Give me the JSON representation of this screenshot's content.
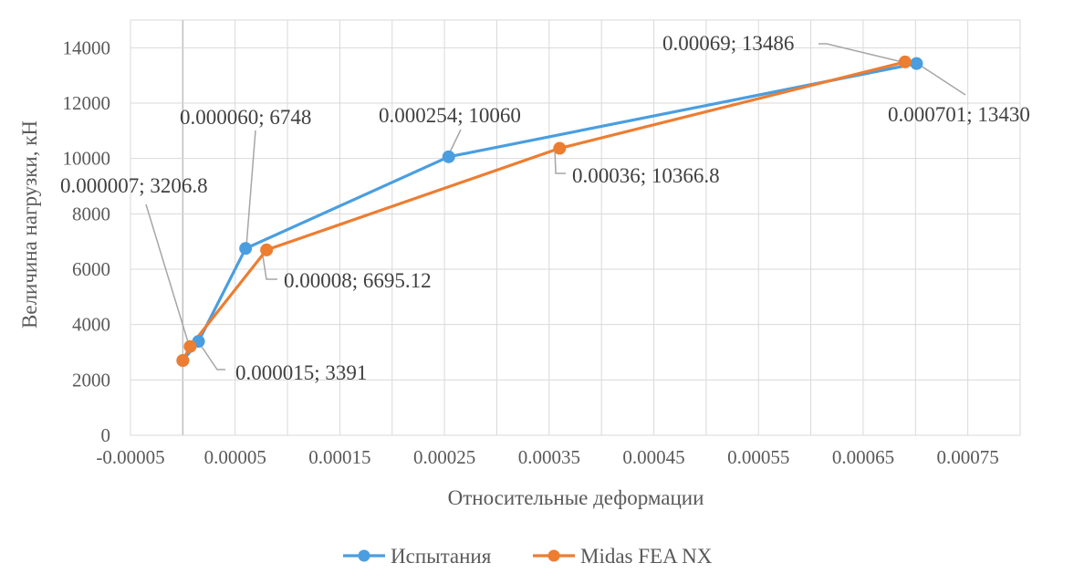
{
  "chart_data": {
    "type": "line",
    "title": "",
    "xlabel": "Относительные деформации",
    "ylabel": "Величина нагрузки, кН",
    "xlim": [
      -5e-05,
      0.0008
    ],
    "ylim": [
      0,
      15000
    ],
    "x_ticks": [
      "-0.00005",
      "0.00005",
      "0.00015",
      "0.00025",
      "0.00035",
      "0.00045",
      "0.00055",
      "0.00065",
      "0.00075"
    ],
    "y_ticks": [
      "0",
      "2000",
      "4000",
      "6000",
      "8000",
      "10000",
      "12000",
      "14000"
    ],
    "grid": true,
    "legend_position": "bottom",
    "series": [
      {
        "name": "Испытания",
        "color": "#4a9ee0",
        "x": [
          0.0,
          1.5e-05,
          6e-05,
          0.000254,
          0.000701
        ],
        "y": [
          2700,
          3391,
          6748,
          10060,
          13430
        ]
      },
      {
        "name": "Midas FEA NX",
        "color": "#ed7d31",
        "x": [
          0.0,
          7e-06,
          8e-05,
          0.00036,
          0.00069
        ],
        "y": [
          2700,
          3206.8,
          6695.12,
          10366.8,
          13486
        ]
      }
    ],
    "annotations": [
      {
        "text": "0.000060; 6748",
        "series": 0,
        "point": 2
      },
      {
        "text": "0.000254; 10060",
        "series": 0,
        "point": 3
      },
      {
        "text": "0.000701; 13430",
        "series": 0,
        "point": 4
      },
      {
        "text": "0.000015; 3391",
        "series": 0,
        "point": 1
      },
      {
        "text": "0.000007; 3206.8",
        "series": 1,
        "point": 1
      },
      {
        "text": "0.00008; 6695.12",
        "series": 1,
        "point": 2
      },
      {
        "text": "0.00036; 10366.8",
        "series": 1,
        "point": 3
      },
      {
        "text": "0.00069; 13486",
        "series": 1,
        "point": 4
      }
    ]
  }
}
